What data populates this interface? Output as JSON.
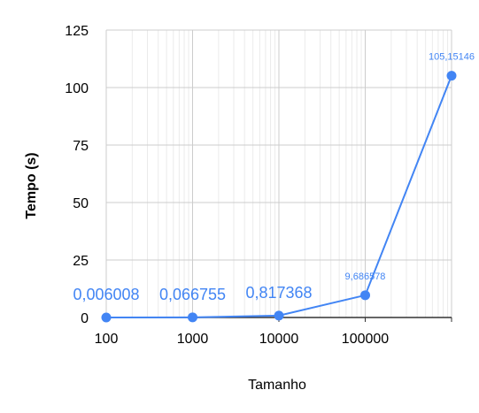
{
  "chart_data": {
    "type": "line",
    "title": "",
    "xlabel": "Tamanho",
    "ylabel": "Tempo (s)",
    "x_scale": "log",
    "x": [
      100,
      1000,
      10000,
      100000,
      1000000
    ],
    "x_tick_labels": [
      "100",
      "1000",
      "10000",
      "100000",
      ""
    ],
    "y_ticks": [
      "0",
      "25",
      "50",
      "75",
      "100",
      "125"
    ],
    "ylim": [
      0,
      125
    ],
    "grid": true,
    "series": [
      {
        "values": [
          0.006008,
          0.066755,
          0.817368,
          9.686578,
          105.15146
        ],
        "data_labels": [
          "0,006008",
          "0,066755",
          "0,817368",
          "9,686578",
          "105,15146"
        ],
        "color": "#4285f4"
      }
    ]
  }
}
